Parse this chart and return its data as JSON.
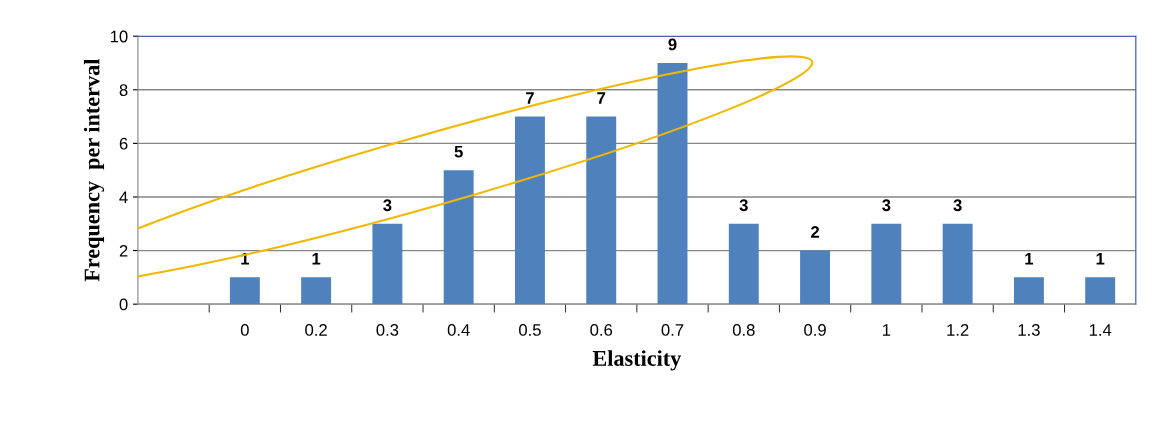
{
  "chart_data": {
    "type": "bar",
    "xlabel": "Elasticity",
    "ylabel": "Frequency  per interval",
    "categories": [
      null,
      "0",
      "0.2",
      "0.3",
      "0.4",
      "0.5",
      "0.6",
      "0.7",
      "0.8",
      "0.9",
      "1",
      "1.2",
      "1.3",
      "1.4"
    ],
    "values": [
      null,
      1,
      1,
      3,
      5,
      7,
      7,
      9,
      3,
      2,
      3,
      3,
      1,
      1
    ],
    "color": "#4f81bd",
    "ylim": [
      0,
      10
    ],
    "yticks": [
      0,
      2,
      4,
      6,
      8,
      10
    ],
    "grid": "y",
    "data_labels": true
  }
}
